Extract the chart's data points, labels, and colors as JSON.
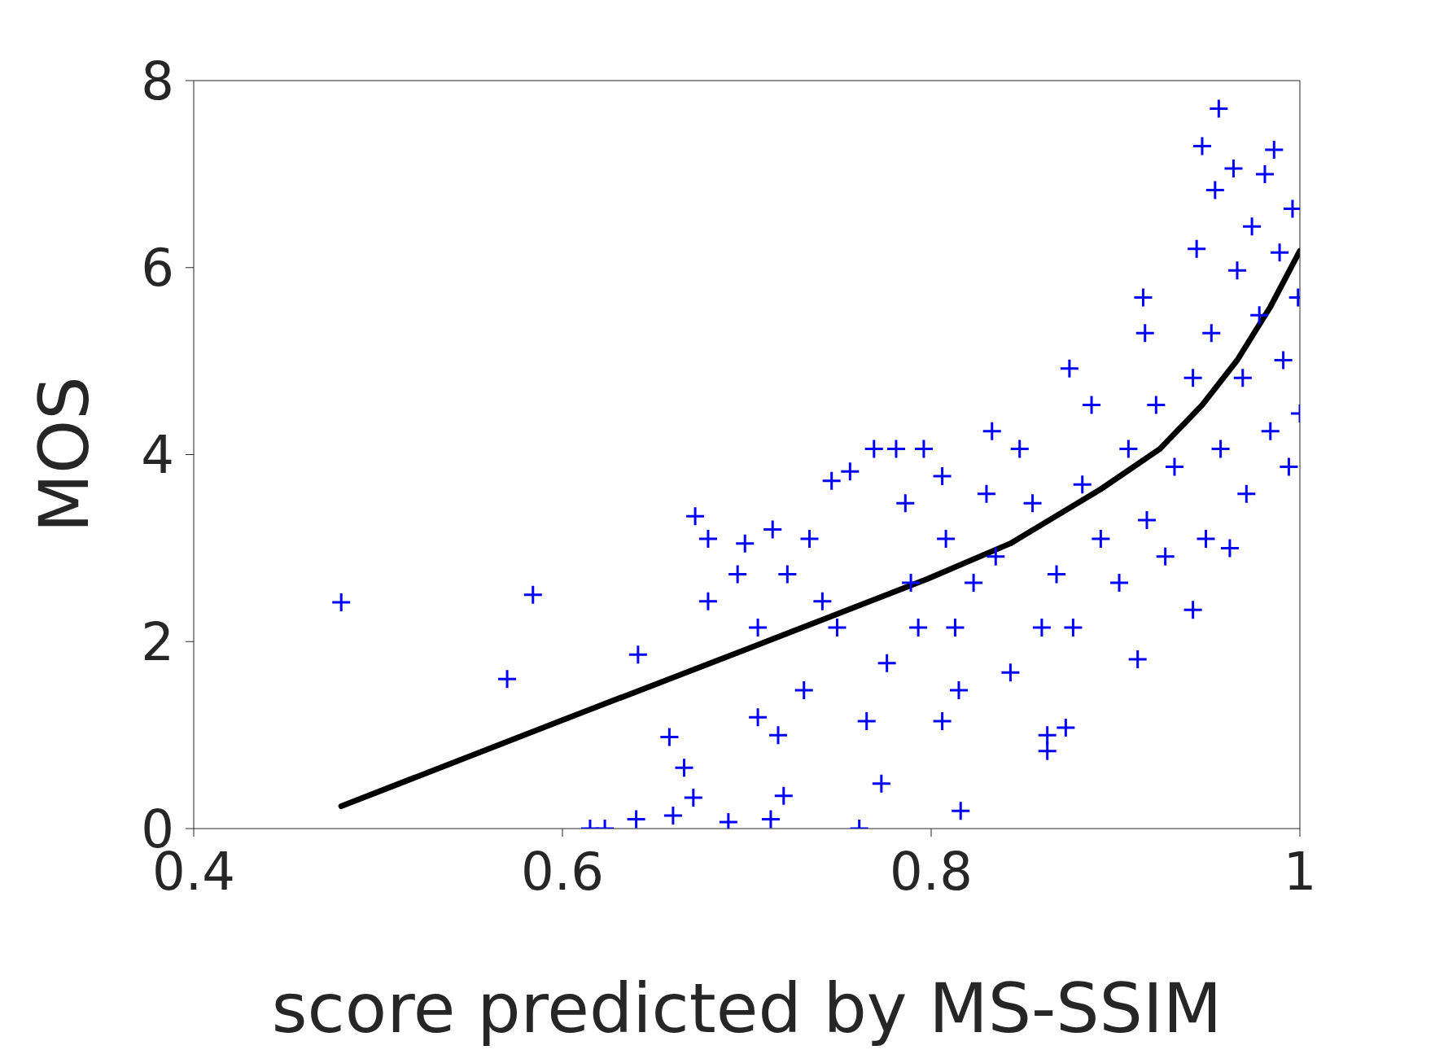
{
  "chart_data": {
    "type": "scatter",
    "xlabel": "score predicted by MS-SSIM",
    "ylabel": "MOS",
    "xlim": [
      0.4,
      1
    ],
    "xticks": [
      0.4,
      0.6,
      0.8,
      1
    ],
    "ylim": [
      0,
      8
    ],
    "yticks": [
      0,
      2,
      4,
      6,
      8
    ],
    "grid": false,
    "legend": false,
    "series": [
      {
        "marker": "cross",
        "color": "#0000ff",
        "x": [
          0.48,
          0.57,
          0.584,
          0.641,
          0.658,
          0.666,
          0.672,
          0.679,
          0.679,
          0.695,
          0.699,
          0.706,
          0.706,
          0.717,
          0.714,
          0.722,
          0.731,
          0.734,
          0.741,
          0.746,
          0.756,
          0.749,
          0.765,
          0.769,
          0.776,
          0.773,
          0.781,
          0.786,
          0.789,
          0.793,
          0.796,
          0.806,
          0.808,
          0.813,
          0.815,
          0.823,
          0.83,
          0.816,
          0.806,
          0.833,
          0.835,
          0.843,
          0.848,
          0.855,
          0.86,
          0.863,
          0.863,
          0.873,
          0.868,
          0.875,
          0.877,
          0.882,
          0.887,
          0.892,
          0.902,
          0.907,
          0.912,
          0.915,
          0.916,
          0.917,
          0.922,
          0.927,
          0.932,
          0.942,
          0.942,
          0.944,
          0.947,
          0.949,
          0.952,
          0.954,
          0.956,
          0.957,
          0.962,
          0.964,
          0.966,
          0.969,
          0.971,
          0.974,
          0.978,
          0.981,
          0.984,
          0.986,
          0.989,
          0.991,
          0.994,
          0.996,
          0.999,
          1.0,
          0.615,
          0.623,
          0.64,
          0.66,
          0.69,
          0.713,
          0.761,
          0.671,
          0.72
        ],
        "values": [
          2.42,
          1.6,
          2.5,
          1.86,
          0.98,
          0.65,
          3.34,
          3.1,
          2.43,
          2.72,
          3.05,
          2.15,
          1.19,
          1.0,
          3.2,
          2.72,
          1.48,
          3.1,
          2.43,
          3.72,
          3.82,
          2.15,
          1.15,
          4.06,
          1.77,
          0.48,
          4.06,
          3.48,
          2.63,
          2.15,
          4.06,
          3.77,
          3.1,
          2.15,
          1.48,
          2.63,
          3.58,
          0.19,
          1.15,
          4.25,
          2.91,
          1.67,
          4.06,
          3.48,
          2.15,
          1.0,
          0.83,
          1.08,
          2.72,
          4.92,
          2.15,
          3.68,
          4.53,
          3.1,
          2.63,
          4.06,
          1.81,
          5.68,
          5.3,
          3.3,
          4.53,
          2.91,
          3.87,
          2.34,
          4.82,
          6.2,
          7.3,
          3.1,
          5.3,
          6.83,
          7.7,
          4.06,
          3.0,
          7.06,
          5.97,
          4.82,
          3.58,
          6.44,
          5.49,
          7.0,
          4.25,
          7.26,
          6.16,
          5.01,
          3.87,
          6.63,
          5.68,
          4.44,
          0.0,
          0.0,
          0.1,
          0.14,
          0.07,
          0.1,
          0.0,
          0.33,
          0.35
        ]
      },
      {
        "type": "line",
        "marker": "none",
        "color": "#000000",
        "x": [
          0.48,
          0.6,
          0.7,
          0.798,
          0.843,
          0.892,
          0.924,
          0.947,
          0.966,
          0.984,
          1.0
        ],
        "values": [
          0.24,
          1.16,
          1.92,
          2.67,
          3.05,
          3.63,
          4.06,
          4.53,
          5.01,
          5.58,
          6.18
        ]
      }
    ]
  }
}
